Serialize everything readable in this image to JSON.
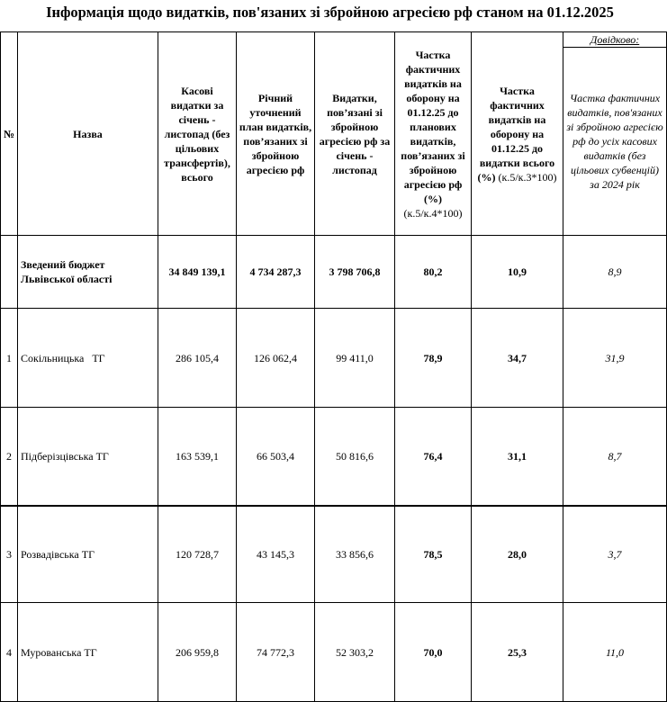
{
  "title": "Інформація щодо видатків, пов'язаних зі збройною агресією рф станом на 01.12.2025",
  "headers": {
    "no": "№",
    "name": "Назва",
    "col3": "Касові видатки за січень - листопад (без цільових трансфертів), всього",
    "col4": "Річний уточнений план видатків, пов’язаних зі збройною агресією рф",
    "col5": "Видатки, пов’язані зі збройною агресією рф за січень - листопад",
    "col6": "Частка фактичних видатків на оборону на 01.12.25 до планових видатків, пов’язаних зі збройною агресією рф (%)",
    "col6_formula": "(к.5/к.4*100)",
    "col7": "Частка фактичних видатків на оборону на 01.12.25 до видатки всього (%)",
    "col7_formula": "(к.5/к.3*100)",
    "ref_label": "Довідково:",
    "col8": "Частка фактичних видатків, пов'язаних зі збройною агресією рф до усіх касових видатків (без цільових субвенцій) за 2024 рік"
  },
  "summary": {
    "name": "Зведений бюджет Львівської області",
    "c3": "34 849 139,1",
    "c4": "4 734 287,3",
    "c5": "3 798 706,8",
    "c6": "80,2",
    "c7": "10,9",
    "c8": "8,9"
  },
  "rows": [
    {
      "no": "1",
      "name": "Сокільницька   ТГ",
      "c3": "286 105,4",
      "c4": "126 062,4",
      "c5": "99 411,0",
      "c6": "78,9",
      "c7": "34,7",
      "c8": "31,9"
    },
    {
      "no": "2",
      "name": "Підберізцівська ТГ",
      "c3": "163 539,1",
      "c4": "66 503,4",
      "c5": "50 816,6",
      "c6": "76,4",
      "c7": "31,1",
      "c8": "8,7"
    },
    {
      "no": "3",
      "name": "Розвадівська ТГ",
      "c3": "120 728,7",
      "c4": "43 145,3",
      "c5": "33 856,6",
      "c6": "78,5",
      "c7": "28,0",
      "c8": "3,7"
    },
    {
      "no": "4",
      "name": "Мурованська ТГ",
      "c3": "206 959,8",
      "c4": "74 772,3",
      "c5": "52 303,2",
      "c6": "70,0",
      "c7": "25,3",
      "c8": "11,0"
    }
  ]
}
